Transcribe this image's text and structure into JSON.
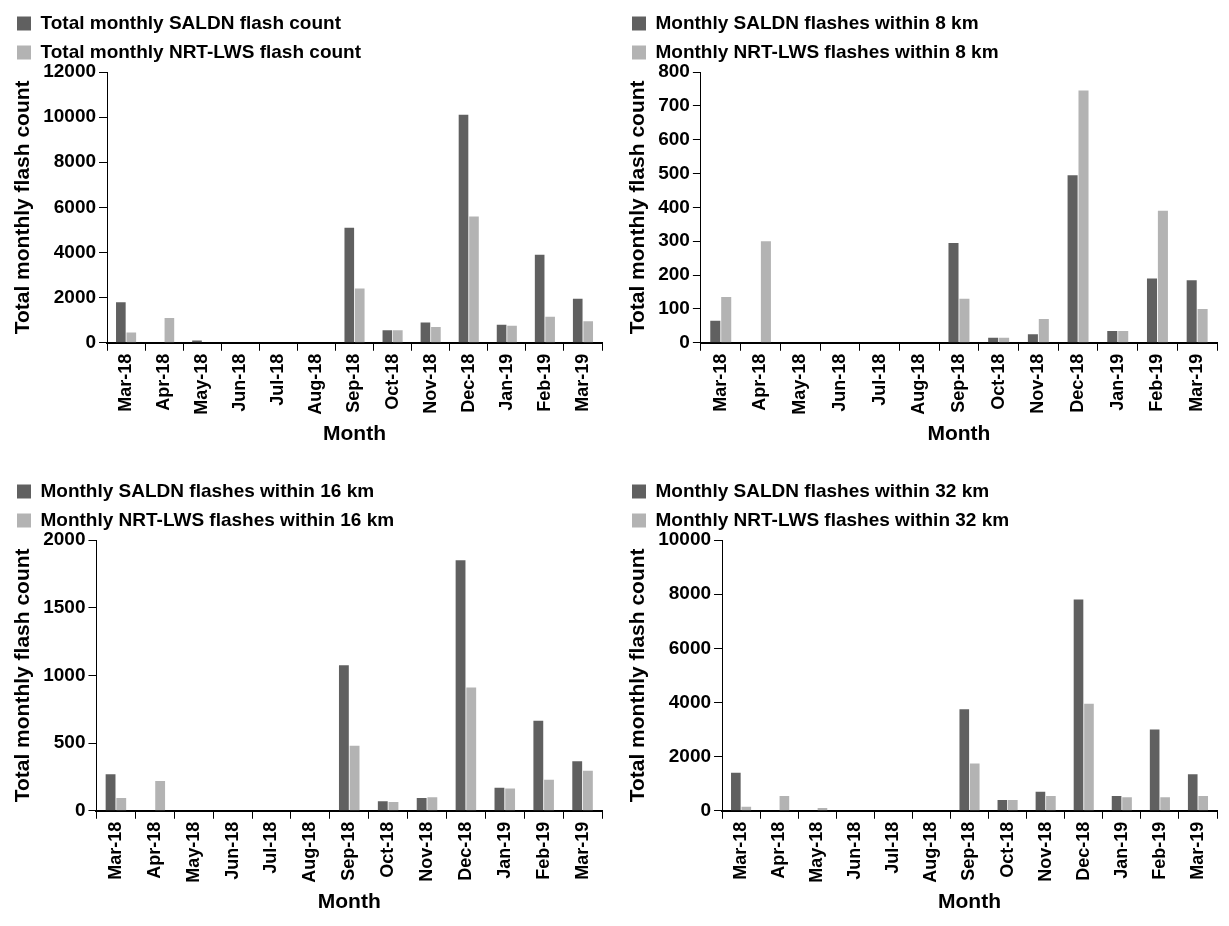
{
  "chart_data": [
    {
      "type": "bar",
      "categories": [
        "Mar-18",
        "Apr-18",
        "May-18",
        "Jun-18",
        "Jul-18",
        "Aug-18",
        "Sep-18",
        "Oct-18",
        "Nov-18",
        "Dec-18",
        "Jan-19",
        "Feb-19",
        "Mar-19"
      ],
      "series": [
        {
          "name": "Total monthly SALDN flash count",
          "color": "#606060",
          "values": [
            1800,
            0,
            100,
            0,
            0,
            0,
            5100,
            550,
            900,
            10100,
            800,
            3900,
            1950
          ]
        },
        {
          "name": "Total monthly NRT-LWS flash count",
          "color": "#b3b3b3",
          "values": [
            450,
            1100,
            0,
            0,
            0,
            0,
            2400,
            550,
            700,
            5600,
            750,
            1150,
            950
          ]
        }
      ],
      "xlabel": "Month",
      "ylabel": "Total monthly flash count",
      "ylim": [
        0,
        12000
      ],
      "yticks": [
        0,
        2000,
        4000,
        6000,
        8000,
        10000,
        12000
      ],
      "legend": "top left",
      "grid": false
    },
    {
      "type": "bar",
      "categories": [
        "Mar-18",
        "Apr-18",
        "May-18",
        "Jun-18",
        "Jul-18",
        "Aug-18",
        "Sep-18",
        "Oct-18",
        "Nov-18",
        "Dec-18",
        "Jan-19",
        "Feb-19",
        "Mar-19"
      ],
      "series": [
        {
          "name": "Monthly SALDN flashes within 8 km",
          "color": "#606060",
          "values": [
            65,
            0,
            0,
            0,
            0,
            0,
            295,
            15,
            25,
            495,
            35,
            190,
            185
          ]
        },
        {
          "name": "Monthly NRT-LWS flashes within 8 km",
          "color": "#b3b3b3",
          "values": [
            135,
            300,
            null,
            0,
            0,
            0,
            130,
            15,
            70,
            745,
            35,
            390,
            100
          ]
        }
      ],
      "xlabel": "Month",
      "ylabel": "Total monthly flash count",
      "ylim": [
        0,
        800
      ],
      "yticks": [
        0,
        100,
        200,
        300,
        400,
        500,
        600,
        700,
        800
      ],
      "legend": "top left",
      "grid": false
    },
    {
      "type": "bar",
      "categories": [
        "Mar-18",
        "Apr-18",
        "May-18",
        "Jun-18",
        "Jul-18",
        "Aug-18",
        "Sep-18",
        "Oct-18",
        "Nov-18",
        "Dec-18",
        "Jan-19",
        "Feb-19",
        "Mar-19"
      ],
      "series": [
        {
          "name": "Monthly SALDN flashes within 16 km",
          "color": "#606060",
          "values": [
            270,
            0,
            0,
            0,
            0,
            0,
            1075,
            70,
            95,
            1850,
            170,
            665,
            365
          ]
        },
        {
          "name": "Monthly NRT-LWS flashes within 16 km",
          "color": "#b3b3b3",
          "values": [
            95,
            220,
            0,
            0,
            0,
            0,
            480,
            65,
            100,
            910,
            165,
            230,
            295
          ]
        }
      ],
      "xlabel": "Month",
      "ylabel": "Total monthly flash count",
      "ylim": [
        0,
        2000
      ],
      "yticks": [
        0,
        500,
        1000,
        1500,
        2000
      ],
      "legend": "top left",
      "grid": false
    },
    {
      "type": "bar",
      "categories": [
        "Mar-18",
        "Apr-18",
        "May-18",
        "Jun-18",
        "Jul-18",
        "Aug-18",
        "Sep-18",
        "Oct-18",
        "Nov-18",
        "Dec-18",
        "Jan-19",
        "Feb-19",
        "Mar-19"
      ],
      "series": [
        {
          "name": "Monthly SALDN flashes within 32 km",
          "color": "#606060",
          "values": [
            1400,
            0,
            0,
            0,
            0,
            0,
            3750,
            400,
            700,
            7800,
            550,
            3000,
            1350
          ]
        },
        {
          "name": "Monthly NRT-LWS flashes within 32 km",
          "color": "#b3b3b3",
          "values": [
            150,
            550,
            100,
            0,
            0,
            0,
            1750,
            400,
            550,
            3950,
            500,
            500,
            550
          ]
        }
      ],
      "xlabel": "Month",
      "ylabel": "Total monthly flash count",
      "ylim": [
        0,
        10000
      ],
      "yticks": [
        0,
        2000,
        4000,
        6000,
        8000,
        10000
      ],
      "legend": "top left",
      "grid": false
    }
  ]
}
